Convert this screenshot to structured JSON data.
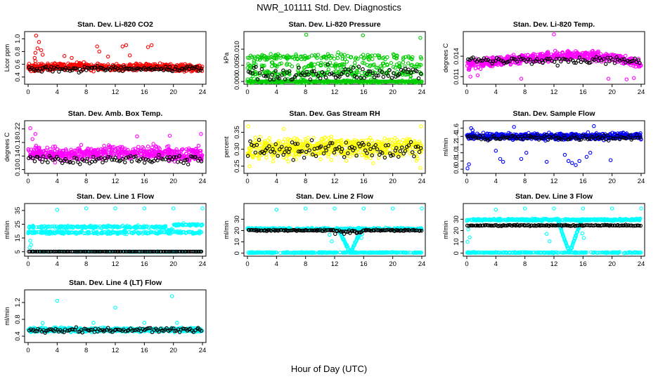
{
  "title": "NWR_101111  Std. Dev. Diagnostics",
  "xlabel": "Hour of Day (UTC)",
  "chart_data": [
    {
      "type": "scatter",
      "title": "Stan. Dev. Li-820 CO2",
      "ylabel": "Licor ppm",
      "xlim": [
        0,
        24
      ],
      "xticks": [
        0,
        4,
        8,
        12,
        16,
        20,
        24
      ],
      "ylim": [
        0.32,
        1.08
      ],
      "yticks": [
        "0.4",
        "0.6",
        "0.8",
        "1.0"
      ],
      "colors": [
        "#ff0000",
        "#000000"
      ],
      "pattern": "band",
      "band": {
        "center": [
          0.55,
          0.56,
          0.57,
          0.55,
          0.56,
          0.55,
          0.54
        ],
        "spread": 0.05,
        "count": 620
      },
      "overlay": {
        "center": 0.53,
        "spread": 0.04,
        "count": 110
      },
      "extra": [
        [
          1.1,
          1.05
        ],
        [
          1.5,
          0.95
        ],
        [
          1.3,
          0.85
        ],
        [
          1.8,
          0.82
        ],
        [
          1.0,
          0.78
        ],
        [
          2.0,
          0.75
        ],
        [
          9.5,
          0.88
        ],
        [
          9.8,
          0.8
        ],
        [
          13.0,
          0.88
        ],
        [
          13.5,
          0.9
        ],
        [
          16.5,
          0.87
        ],
        [
          17.0,
          0.9
        ],
        [
          5.0,
          0.73
        ],
        [
          11.0,
          0.72
        ],
        [
          1.0,
          0.65
        ],
        [
          0.9,
          0.7
        ],
        [
          6.0,
          0.7
        ],
        [
          14.0,
          0.74
        ]
      ]
    },
    {
      "type": "scatter",
      "title": "Stan. Dev. Li-820 Pressure",
      "ylabel": "kPa",
      "xlim": [
        0,
        24
      ],
      "xticks": [
        0,
        4,
        8,
        12,
        16,
        20,
        24
      ],
      "ylim": [
        -0.0002,
        0.0148
      ],
      "yticks": [
        "0.000",
        "0.005",
        "0.010"
      ],
      "colors": [
        "#00cc00",
        "#000000"
      ],
      "pattern": "levels",
      "levels": [
        0,
        0.0025,
        0.005,
        0.0075
      ],
      "count": 520,
      "zero_row": true,
      "overlay": {
        "center": 0.0025,
        "spread": 0.002,
        "count": 90
      },
      "extra": [
        [
          8.1,
          0.0145
        ],
        [
          15.9,
          0.0143
        ],
        [
          23.8,
          0.0135
        ],
        [
          3.2,
          0.0085
        ],
        [
          12.5,
          0.009
        ]
      ]
    },
    {
      "type": "scatter",
      "title": "Stan. Dev. Li-820 Temp.",
      "ylabel": "degrees C",
      "xlim": [
        0,
        24
      ],
      "xticks": [
        0,
        4,
        8,
        12,
        16,
        20,
        24
      ],
      "ylim": [
        0.0102,
        0.0173
      ],
      "yticks": [
        "0.011",
        "0.014"
      ],
      "colors": [
        "#ff00ff",
        "#000000"
      ],
      "pattern": "band",
      "band": {
        "center": [
          0.0128,
          0.0132,
          0.0137,
          0.014,
          0.0142,
          0.0138,
          0.0128
        ],
        "spread": 0.00065,
        "count": 560
      },
      "overlay": {
        "center": 0.0134,
        "spread": 0.0005,
        "count": 95
      },
      "extra": [
        [
          12.0,
          0.0172
        ],
        [
          7.5,
          0.0107
        ],
        [
          19.5,
          0.0107
        ],
        [
          22.0,
          0.0106
        ],
        [
          23.0,
          0.0108
        ],
        [
          0.5,
          0.011
        ],
        [
          1.5,
          0.0112
        ]
      ]
    },
    {
      "type": "scatter",
      "title": "Stan. Dev. Amb. Box Temp.",
      "ylabel": "degrees C",
      "xlim": [
        0,
        24
      ],
      "xticks": [
        0,
        4,
        8,
        12,
        16,
        20,
        24
      ],
      "ylim": [
        0.095,
        0.238
      ],
      "yticks": [
        "0.10",
        "0.14",
        "0.18",
        "0.22"
      ],
      "colors": [
        "#ff00ff",
        "#000000"
      ],
      "pattern": "band",
      "band": {
        "center": [
          0.148,
          0.146,
          0.148,
          0.15,
          0.15,
          0.148,
          0.146
        ],
        "spread": 0.018,
        "count": 600
      },
      "overlay": {
        "center": 0.13,
        "spread": 0.012,
        "count": 95
      },
      "extra": [
        [
          0.3,
          0.222
        ],
        [
          1.0,
          0.205
        ],
        [
          0.6,
          0.19
        ],
        [
          23.8,
          0.205
        ],
        [
          19.5,
          0.2
        ],
        [
          15.0,
          0.198
        ]
      ]
    },
    {
      "type": "scatter",
      "title": "Stan. Dev. Gas Stream RH",
      "ylabel": "percent",
      "xlim": [
        0,
        24
      ],
      "xticks": [
        0,
        4,
        8,
        12,
        16,
        20,
        24
      ],
      "ylim": [
        0.235,
        0.378
      ],
      "yticks": [
        "0.25",
        "0.30",
        "0.35"
      ],
      "colors": [
        "#ffff00",
        "#000000"
      ],
      "pattern": "band",
      "band": {
        "center": [
          0.3,
          0.302,
          0.305,
          0.305,
          0.305,
          0.305,
          0.305
        ],
        "spread": 0.028,
        "count": 620
      },
      "overlay": {
        "center": 0.3,
        "spread": 0.025,
        "count": 100
      },
      "extra": [
        [
          0.1,
          0.368
        ],
        [
          23.9,
          0.368
        ],
        [
          5.0,
          0.36
        ],
        [
          0.3,
          0.25
        ],
        [
          23.8,
          0.245
        ]
      ]
    },
    {
      "type": "scatter",
      "title": "Stan. Dev. Sample Flow",
      "ylabel": "ml/min",
      "xlim": [
        0,
        24
      ],
      "xticks": [
        0,
        4,
        8,
        12,
        16,
        20,
        24
      ],
      "ylim": [
        0.55,
        1.73
      ],
      "yticks": [
        "0.6",
        "0.8",
        "1.0",
        "1.2",
        "1.4",
        "1.6"
      ],
      "colors": [
        "#0000ff",
        "#000000"
      ],
      "pattern": "band",
      "band": {
        "center": [
          1.4,
          1.4,
          1.4,
          1.4,
          1.4,
          1.4,
          1.4
        ],
        "spread": 0.07,
        "count": 640
      },
      "overlay": {
        "center": 1.37,
        "spread": 0.07,
        "count": 100
      },
      "extra": [
        [
          0.1,
          0.62
        ],
        [
          0.3,
          0.72
        ],
        [
          0.6,
          1.6
        ],
        [
          0.8,
          1.55
        ],
        [
          4.0,
          1.05
        ],
        [
          4.6,
          0.85
        ],
        [
          5.0,
          0.78
        ],
        [
          7.5,
          0.85
        ],
        [
          8.2,
          1.0
        ],
        [
          11.0,
          0.78
        ],
        [
          13.5,
          0.95
        ],
        [
          14.0,
          0.8
        ],
        [
          14.5,
          0.75
        ],
        [
          15.0,
          0.7
        ],
        [
          15.5,
          0.8
        ],
        [
          16.5,
          0.9
        ],
        [
          17.0,
          1.0
        ],
        [
          19.8,
          0.82
        ],
        [
          6.5,
          1.63
        ],
        [
          17.5,
          1.65
        ]
      ]
    },
    {
      "type": "scatter",
      "title": "Stan. Dev. Line 1 Flow",
      "ylabel": "ml/min",
      "xlim": [
        0,
        24
      ],
      "xticks": [
        0,
        4,
        8,
        12,
        16,
        20,
        24
      ],
      "ylim": [
        3.3,
        38.5
      ],
      "yticks": [
        "5",
        "15",
        "25",
        "35"
      ],
      "colors": [
        "#00ffff",
        "#000000"
      ],
      "pattern": "line1",
      "count": 620,
      "overlay": {
        "center": 5.1,
        "spread": 0,
        "count": 130
      },
      "extra": [
        [
          4.0,
          35.5
        ],
        [
          8.0,
          36.5
        ],
        [
          12.0,
          36.5
        ],
        [
          16.0,
          36.5
        ],
        [
          20.0,
          36.5
        ],
        [
          24.0,
          36.5
        ],
        [
          0.2,
          8
        ],
        [
          0.4,
          10
        ],
        [
          0.3,
          13
        ]
      ]
    },
    {
      "type": "scatter",
      "title": "Stan. Dev. Line 2 Flow",
      "ylabel": "ml/min",
      "xlim": [
        0,
        24
      ],
      "xticks": [
        0,
        4,
        8,
        12,
        16,
        20,
        24
      ],
      "ylim": [
        -0.8,
        42
      ],
      "yticks": [
        "0",
        "10",
        "20",
        "30"
      ],
      "colors": [
        "#00ffff",
        "#000000"
      ],
      "pattern": "line2",
      "count": 640,
      "overlay": {
        "center": 20.2,
        "spread": 0.6,
        "count": 140
      },
      "extra": [
        [
          4.0,
          38.5
        ],
        [
          8.0,
          39.5
        ],
        [
          12.0,
          39.5
        ],
        [
          16.0,
          39.5
        ],
        [
          20.0,
          39.5
        ],
        [
          24.0,
          39.5
        ],
        [
          11.3,
          16.3
        ],
        [
          11.6,
          10.5
        ],
        [
          15.8,
          17.0
        ],
        [
          15.7,
          13.5
        ]
      ]
    },
    {
      "type": "scatter",
      "title": "Stan. Dev. Line 3 Flow",
      "ylabel": "ml/min",
      "xlim": [
        0,
        24
      ],
      "xticks": [
        0,
        4,
        8,
        12,
        16,
        20,
        24
      ],
      "ylim": [
        -0.8,
        42
      ],
      "yticks": [
        "0",
        "10",
        "20",
        "30"
      ],
      "colors": [
        "#00ffff",
        "#000000"
      ],
      "pattern": "line3",
      "count": 640,
      "overlay": {
        "center": 24.5,
        "spread": 0.5,
        "count": 140
      },
      "extra": [
        [
          4.0,
          38.5
        ],
        [
          8.0,
          39.5
        ],
        [
          12.0,
          39.5
        ],
        [
          16.0,
          39.5
        ],
        [
          20.0,
          39.5
        ],
        [
          24.0,
          39.5
        ],
        [
          11.0,
          17.0
        ],
        [
          11.4,
          10.5
        ],
        [
          15.9,
          17.5
        ],
        [
          16.1,
          13.5
        ],
        [
          0.1,
          10
        ],
        [
          0.4,
          14
        ],
        [
          0.2,
          21
        ]
      ]
    },
    {
      "type": "scatter",
      "title": "Stan. Dev. Line 4 (LT) Flow",
      "ylabel": "ml/min",
      "xlim": [
        0,
        24
      ],
      "xticks": [
        0,
        4,
        8,
        12,
        16,
        20,
        24
      ],
      "ylim": [
        0.3,
        1.45
      ],
      "yticks": [
        "0.4",
        "0.8",
        "1.2"
      ],
      "colors": [
        "#00ffff",
        "#000000"
      ],
      "pattern": "band",
      "band": {
        "center": [
          0.55,
          0.55,
          0.55,
          0.55,
          0.55,
          0.55,
          0.55
        ],
        "spread": 0.045,
        "count": 620
      },
      "overlay": {
        "center": 0.55,
        "spread": 0.05,
        "count": 110
      },
      "extra": [
        [
          4.0,
          1.24
        ],
        [
          12.0,
          1.08
        ],
        [
          19.8,
          1.35
        ],
        [
          9.0,
          0.72
        ],
        [
          16.0,
          0.72
        ],
        [
          2.0,
          0.71
        ],
        [
          20.5,
          0.72
        ]
      ]
    }
  ]
}
